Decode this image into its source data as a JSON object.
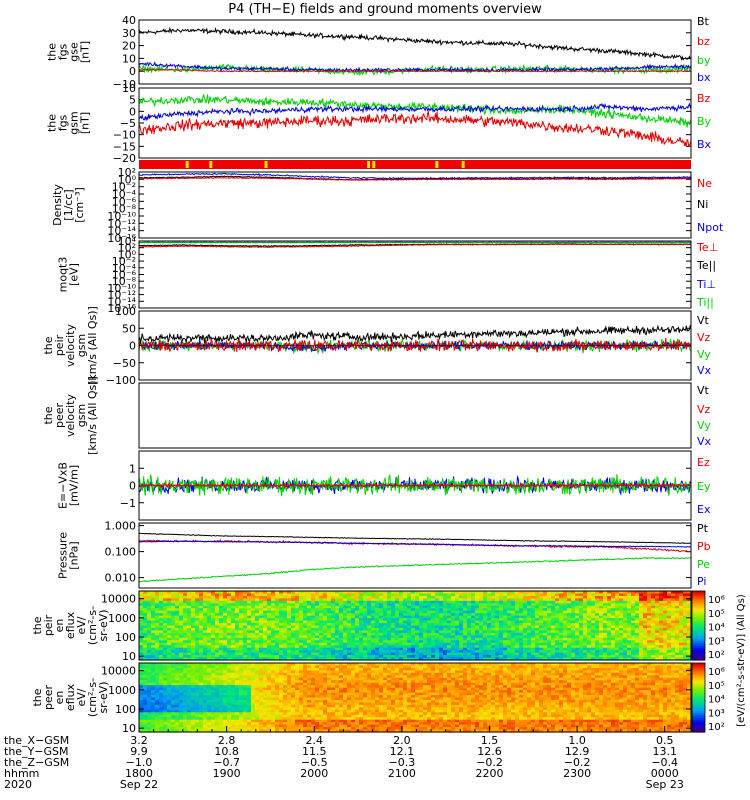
{
  "chart_data": {
    "title": "P4 (TH−E) fields and ground moments overview",
    "panels": [
      {
        "id": "fgs_gse",
        "type": "line",
        "ylabel": [
          "the",
          "fgs",
          "gse",
          "[nT]"
        ],
        "ylim": [
          -10,
          40
        ],
        "yticks": [
          "40",
          "30",
          "20",
          "10",
          "0",
          "−10"
        ],
        "legend": [
          {
            "label": "Bt",
            "color": "#000000"
          },
          {
            "label": "bz",
            "color": "#e00000"
          },
          {
            "label": "by",
            "color": "#00d000"
          },
          {
            "label": "bx",
            "color": "#0000e0"
          }
        ],
        "series": [
          {
            "name": "Bt",
            "color": "#000000",
            "base": [
              30,
              32,
              31,
              30,
              28,
              27,
              25,
              23,
              22,
              21,
              18,
              16,
              13,
              10
            ],
            "noise": 1.5
          },
          {
            "name": "by",
            "color": "#00d000",
            "base": [
              2,
              1,
              3,
              1,
              1,
              -1,
              0,
              2,
              1,
              2,
              2,
              1,
              1,
              2
            ],
            "noise": 2
          },
          {
            "name": "bx",
            "color": "#0000e0",
            "base": [
              6,
              4,
              2,
              2,
              1,
              1,
              1,
              1,
              1,
              1,
              1,
              2,
              3,
              4
            ],
            "noise": 1.2
          },
          {
            "name": "bz",
            "color": "#e00000",
            "base": [
              1,
              1,
              0,
              0,
              0,
              0,
              0,
              0,
              0,
              0,
              0,
              0,
              0,
              0
            ],
            "noise": 0.4
          }
        ]
      },
      {
        "id": "fgs_gsm",
        "type": "line",
        "ylabel": [
          "the",
          "fgs",
          "gsm",
          "[nT]"
        ],
        "ylim": [
          -20,
          10
        ],
        "yticks": [
          "10",
          "5",
          "0",
          "−5",
          "−10",
          "−15",
          "−20"
        ],
        "legend": [
          {
            "label": "Bz",
            "color": "#e00000"
          },
          {
            "label": "By",
            "color": "#00d000"
          },
          {
            "label": "Bx",
            "color": "#0000e0"
          }
        ],
        "series": [
          {
            "name": "Bz",
            "color": "#e00000",
            "base": [
              -8,
              -6,
              -5,
              -5,
              -4,
              -4,
              -3,
              -3,
              -4,
              -5,
              -7,
              -8,
              -11,
              -14
            ],
            "noise": 2
          },
          {
            "name": "By",
            "color": "#00d000",
            "base": [
              4,
              5,
              5,
              4,
              4,
              3,
              2,
              2,
              1,
              0,
              1,
              -1,
              -3,
              -5
            ],
            "noise": 1.5
          },
          {
            "name": "Bx",
            "color": "#0000e0",
            "base": [
              -3,
              -1,
              0,
              0,
              1,
              1,
              1,
              1,
              1,
              1,
              1,
              2,
              1,
              2
            ],
            "noise": 1
          }
        ]
      },
      {
        "id": "quality",
        "type": "bar",
        "color": "#ee0000",
        "marker_color": "#e8e800",
        "markers_hours": [
          0.55,
          0.82,
          1.45,
          2.62,
          2.68,
          3.4,
          3.7
        ]
      },
      {
        "id": "density",
        "type": "line",
        "scale": "log",
        "ylabel": [
          "Density",
          "[1/cc]",
          "[cm⁻³]"
        ],
        "ylim_exp": [
          -16,
          2
        ],
        "yticks": [
          "10²",
          "10⁰",
          "10⁻²",
          "10⁻⁴",
          "10⁻⁶",
          "10⁻⁸",
          "10⁻¹⁰",
          "10⁻¹²",
          "10⁻¹⁴",
          "10⁻¹⁶"
        ],
        "legend": [
          {
            "label": "Ne",
            "color": "#e00000"
          },
          {
            "label": "Ni",
            "color": "#000000"
          },
          {
            "label": "Npot",
            "color": "#0000e0"
          }
        ],
        "series": [
          {
            "name": "Npot",
            "color": "#0000e0",
            "base": [
              1.2,
              1.4,
              1.5,
              1.2,
              0.8,
              0.4,
              0.3,
              0.3,
              0.4,
              0.4,
              0.5,
              0.4,
              0.5,
              0.6
            ],
            "noise": 0.15
          },
          {
            "name": "Ni",
            "color": "#000000",
            "base": [
              0.4,
              0.6,
              0.8,
              0.6,
              0.2,
              -0.1,
              0,
              0.1,
              0.1,
              0.1,
              0.2,
              0.1,
              0.2,
              0.3
            ],
            "noise": 0.1
          },
          {
            "name": "Ne",
            "color": "#e00000",
            "base": [
              0.2,
              0.3,
              0.4,
              0.3,
              0.1,
              -0.2,
              -0.1,
              0,
              0,
              0,
              0.1,
              0,
              0.1,
              0.2
            ],
            "noise": 0.1
          }
        ]
      },
      {
        "id": "temperature",
        "type": "line",
        "scale": "log",
        "ylabel": [
          "moqt3",
          "[eV]"
        ],
        "ylim_exp": [
          -16,
          4
        ],
        "yticks": [
          "10⁴",
          "10²",
          "10⁰",
          "10⁻²",
          "10⁻⁴",
          "10⁻⁶",
          "10⁻⁸",
          "10⁻¹⁰",
          "10⁻¹²",
          "10⁻¹⁴",
          "10⁻¹⁶"
        ],
        "legend": [
          {
            "label": "Te⊥",
            "color": "#e00000"
          },
          {
            "label": "Te||",
            "color": "#000000"
          },
          {
            "label": "Ti⊥",
            "color": "#0000e0"
          },
          {
            "label": "Ti||",
            "color": "#00d000"
          }
        ],
        "series": [
          {
            "name": "Ti⊥",
            "color": "#0000e0",
            "base": [
              3.6,
              3.6,
              3.6,
              3.6,
              3.6,
              3.6,
              3.6,
              3.6,
              3.6,
              3.6,
              3.6,
              3.6,
              3.6,
              3.6
            ],
            "noise": 0.05
          },
          {
            "name": "Ti||",
            "color": "#00d000",
            "base": [
              3.5,
              3.5,
              3.5,
              3.5,
              3.5,
              3.5,
              3.5,
              3.5,
              3.5,
              3.5,
              3.5,
              3.5,
              3.5,
              3.5
            ],
            "noise": 0.05
          },
          {
            "name": "Te||",
            "color": "#000000",
            "base": [
              2.6,
              2.8,
              2.6,
              2.5,
              2.6,
              2.8,
              2.9,
              3.0,
              3.0,
              3.0,
              3.1,
              3.0,
              3.0,
              3.0
            ],
            "noise": 0.1
          },
          {
            "name": "Te⊥",
            "color": "#e00000",
            "base": [
              2.2,
              2.5,
              2.3,
              2.2,
              2.3,
              2.5,
              2.7,
              2.9,
              2.9,
              3.0,
              3.0,
              3.0,
              3.0,
              3.0
            ],
            "noise": 0.1
          }
        ]
      },
      {
        "id": "velocity_peir",
        "type": "line",
        "ylabel": [
          "the",
          "peir",
          "velocity",
          "gsm",
          "[km/s (All Qs)]"
        ],
        "ylim": [
          -100,
          100
        ],
        "yticks": [
          "100",
          "50",
          "0",
          "−50",
          "−100"
        ],
        "legend": [
          {
            "label": "Vt",
            "color": "#000000"
          },
          {
            "label": "Vz",
            "color": "#e00000"
          },
          {
            "label": "Vy",
            "color": "#00d000"
          },
          {
            "label": "Vx",
            "color": "#0000e0"
          }
        ],
        "series": [
          {
            "name": "Vy",
            "color": "#00d000",
            "base": [
              0,
              0,
              0,
              0,
              -5,
              0,
              0,
              0,
              0,
              0,
              0,
              0,
              0,
              0
            ],
            "noise": 14
          },
          {
            "name": "Vx",
            "color": "#0000e0",
            "base": [
              0,
              0,
              0,
              0,
              -8,
              0,
              0,
              0,
              0,
              0,
              0,
              0,
              0,
              0
            ],
            "noise": 10
          },
          {
            "name": "Vz",
            "color": "#e00000",
            "base": [
              0,
              0,
              0,
              0,
              0,
              0,
              0,
              0,
              0,
              0,
              0,
              0,
              0,
              0
            ],
            "noise": 14
          },
          {
            "name": "Vt",
            "color": "#000000",
            "base": [
              20,
              22,
              22,
              20,
              30,
              25,
              25,
              30,
              35,
              35,
              40,
              42,
              45,
              45
            ],
            "noise": 10
          }
        ]
      },
      {
        "id": "velocity_peer",
        "type": "line",
        "ylabel": [
          "the",
          "peer",
          "velocity",
          "gsm",
          "[km/s (All Qs)]"
        ],
        "legend": [
          {
            "label": "Vt",
            "color": "#000000"
          },
          {
            "label": "Vz",
            "color": "#e00000"
          },
          {
            "label": "Vy",
            "color": "#00d000"
          },
          {
            "label": "Vx",
            "color": "#0000e0"
          }
        ],
        "series": []
      },
      {
        "id": "efield",
        "type": "line",
        "ylabel": [
          "E=−VxB",
          "[mV/m]"
        ],
        "ylim": [
          -2,
          2
        ],
        "yticks": [
          "1",
          "0",
          "−1"
        ],
        "legend": [
          {
            "label": "Ez",
            "color": "#e00000"
          },
          {
            "label": "Ey",
            "color": "#00d000"
          },
          {
            "label": "Ex",
            "color": "#0000e0"
          }
        ],
        "series": [
          {
            "name": "Ex",
            "color": "#0000e0",
            "base": [
              0,
              0,
              0,
              0,
              0,
              0,
              0,
              0,
              0,
              0,
              0,
              0,
              0,
              0
            ],
            "noise": 0.35
          },
          {
            "name": "Ey",
            "color": "#00d000",
            "base": [
              0,
              0,
              0,
              0,
              0,
              0,
              0,
              0,
              0,
              0,
              0,
              0,
              0,
              0
            ],
            "noise": 0.45
          },
          {
            "name": "Ez",
            "color": "#e00000",
            "base": [
              0,
              0,
              0,
              0,
              0,
              0,
              0,
              0,
              0,
              0,
              0,
              0,
              0,
              0
            ],
            "noise": 0.08
          }
        ]
      },
      {
        "id": "pressure",
        "type": "line",
        "scale": "log",
        "ylabel": [
          "Pressure",
          "[nPa]"
        ],
        "ylim_exp": [
          -2.4,
          0.1
        ],
        "yticks": [
          "1.000",
          "0.100",
          "0.010"
        ],
        "ytick_exps": [
          0,
          -1,
          -2
        ],
        "legend": [
          {
            "label": "Pt",
            "color": "#000000"
          },
          {
            "label": "Pb",
            "color": "#e00000"
          },
          {
            "label": "Pe",
            "color": "#00d000"
          },
          {
            "label": "Pi",
            "color": "#0000e0"
          }
        ],
        "series": [
          {
            "name": "Pt",
            "color": "#000000",
            "base": [
              -0.3,
              -0.35,
              -0.4,
              -0.42,
              -0.45,
              -0.48,
              -0.5,
              -0.52,
              -0.55,
              -0.58,
              -0.6,
              -0.62,
              -0.65,
              -0.68
            ],
            "noise": 0.01
          },
          {
            "name": "Pb",
            "color": "#e00000",
            "base": [
              -0.58,
              -0.6,
              -0.6,
              -0.62,
              -0.65,
              -0.68,
              -0.7,
              -0.72,
              -0.75,
              -0.78,
              -0.8,
              -0.82,
              -0.9,
              -1.0
            ],
            "noise": 0.03
          },
          {
            "name": "Pi",
            "color": "#0000e0",
            "base": [
              -0.62,
              -0.6,
              -0.62,
              -0.63,
              -0.65,
              -0.68,
              -0.7,
              -0.72,
              -0.75,
              -0.78,
              -0.78,
              -0.8,
              -0.8,
              -0.82
            ],
            "noise": 0.01
          },
          {
            "name": "Pe",
            "color": "#00d000",
            "base": [
              -2.15,
              -2.05,
              -1.95,
              -1.85,
              -1.7,
              -1.6,
              -1.55,
              -1.5,
              -1.45,
              -1.4,
              -1.35,
              -1.3,
              -1.25,
              -1.25
            ],
            "noise": 0.02
          }
        ]
      },
      {
        "id": "peir_eflux",
        "type": "heatmap",
        "ylabel": [
          "the",
          "peir",
          "en",
          "eflux",
          "eV/",
          "(cm²-s-",
          "sr-eV)"
        ],
        "yticks": [
          "10000",
          "1000",
          "100",
          "10"
        ],
        "ylim_exp": [
          0.8,
          4.4
        ],
        "colorbar": {
          "label": "[eV/(cm²-s-str-eV)] (All Qs)",
          "ticks": [
            "10⁶",
            "10⁵",
            "10⁴",
            "10³",
            "10²"
          ],
          "range_exp": [
            1.5,
            6.5
          ]
        }
      },
      {
        "id": "peer_eflux",
        "type": "heatmap",
        "ylabel": [
          "the",
          "peer",
          "en",
          "eflux",
          "eV/",
          "(cm²-s-",
          "sr-eV)"
        ],
        "yticks": [
          "10000",
          "1000",
          "100",
          "10"
        ],
        "ylim_exp": [
          0.8,
          4.4
        ],
        "colorbar": {
          "label": "[eV/(cm²-s-str-eV)] (All Qs)",
          "ticks": [
            "10⁶",
            "10⁵",
            "10⁴",
            "10³",
            "10²"
          ],
          "range_exp": [
            1.5,
            6.5
          ]
        }
      }
    ],
    "x_axis": {
      "hours_range": [
        0,
        6.3
      ],
      "tick_hours": [
        0,
        1,
        2,
        3,
        4,
        5,
        6
      ],
      "rows": [
        {
          "label": "the_X−GSM",
          "values": [
            "3.2",
            "2.8",
            "2.4",
            "2.0",
            "1.5",
            "1.0",
            "0.5"
          ]
        },
        {
          "label": "the_Y−GSM",
          "values": [
            "9.9",
            "10.8",
            "11.5",
            "12.1",
            "12.6",
            "12.9",
            "13.1"
          ]
        },
        {
          "label": "the_Z−GSM",
          "values": [
            "−1.0",
            "−0.7",
            "−0.5",
            "−0.3",
            "−0.2",
            "−0.2",
            "−0.4"
          ]
        },
        {
          "label": "hhmm",
          "values": [
            "1800",
            "1900",
            "2000",
            "2100",
            "2200",
            "2300",
            "0000"
          ]
        },
        {
          "label": "2020",
          "values": [
            "Sep 22",
            "",
            "",
            "",
            "",
            "",
            "Sep 23"
          ]
        }
      ]
    }
  }
}
